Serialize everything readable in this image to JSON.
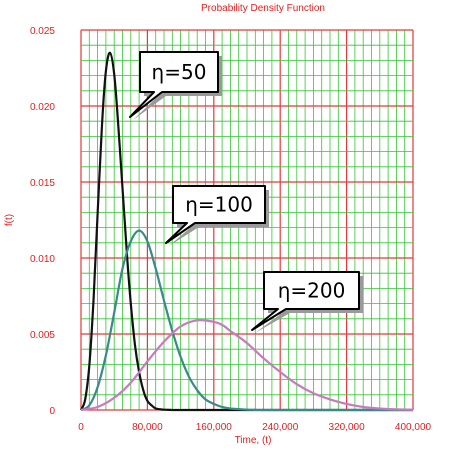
{
  "chart_data": {
    "type": "line",
    "title": "Probability Density Function",
    "xlabel": "Time, (t)",
    "ylabel": "f(t)",
    "xlim": [
      0,
      400000
    ],
    "ylim": [
      0,
      0.025
    ],
    "x_ticks": [
      "0",
      "80,000",
      "160,000",
      "240,000",
      "320,000",
      "400,000"
    ],
    "y_ticks": [
      "0",
      "0.005",
      "0.010",
      "0.015",
      "0.020",
      "0.025"
    ],
    "grid": true,
    "colors": {
      "text": "#e0201f",
      "grid_minor": "#35c435",
      "grid_major": "#e23a3a",
      "background": "#ffffff"
    },
    "series": [
      {
        "name": "η=50",
        "color": "#111111",
        "x": [
          0,
          5000,
          10000,
          15000,
          20000,
          25000,
          30000,
          35000,
          40000,
          45000,
          50000,
          55000,
          60000,
          65000,
          70000,
          75000,
          80000,
          85000,
          90000,
          95000,
          100000,
          110000,
          120000,
          140000,
          400000
        ],
        "y": [
          0,
          0.0007,
          0.0029,
          0.0072,
          0.0129,
          0.0185,
          0.0223,
          0.0235,
          0.0221,
          0.0187,
          0.0146,
          0.0105,
          0.007,
          0.0043,
          0.0025,
          0.0013,
          0.0006,
          0.0003,
          0.0001,
          5e-05,
          2e-05,
          0,
          0,
          0,
          0
        ]
      },
      {
        "name": "η=100",
        "color": "#3a8a8a",
        "x": [
          0,
          10000,
          20000,
          30000,
          40000,
          50000,
          60000,
          70000,
          80000,
          90000,
          100000,
          110000,
          120000,
          130000,
          140000,
          150000,
          160000,
          170000,
          180000,
          200000,
          220000,
          250000,
          400000
        ],
        "y": [
          0,
          0.0003,
          0.0015,
          0.0036,
          0.0064,
          0.0093,
          0.0111,
          0.0118,
          0.0111,
          0.0093,
          0.0072,
          0.0052,
          0.0035,
          0.0022,
          0.0013,
          0.0007,
          0.0004,
          0.0002,
          0.0001,
          2e-05,
          0,
          0,
          0
        ]
      },
      {
        "name": "η=200",
        "color": "#c77ac0",
        "x": [
          0,
          20000,
          40000,
          60000,
          80000,
          100000,
          120000,
          140000,
          160000,
          170000,
          180000,
          200000,
          220000,
          240000,
          260000,
          280000,
          300000,
          320000,
          340000,
          360000,
          380000,
          400000
        ],
        "y": [
          0,
          0.0002,
          0.0008,
          0.0018,
          0.0032,
          0.0045,
          0.0055,
          0.0059,
          0.0058,
          0.0056,
          0.0052,
          0.0044,
          0.0034,
          0.0025,
          0.0017,
          0.0011,
          0.0007,
          0.0004,
          0.0002,
          0.0001,
          4e-05,
          2e-05
        ]
      }
    ],
    "annotations": [
      {
        "text": "η=50",
        "series": 0,
        "x": 40000,
        "y": 0.02
      },
      {
        "text": "η=100",
        "series": 1,
        "x": 100000,
        "y": 0.011
      },
      {
        "text": "η=200",
        "series": 2,
        "x": 210000,
        "y": 0.0051
      }
    ]
  }
}
